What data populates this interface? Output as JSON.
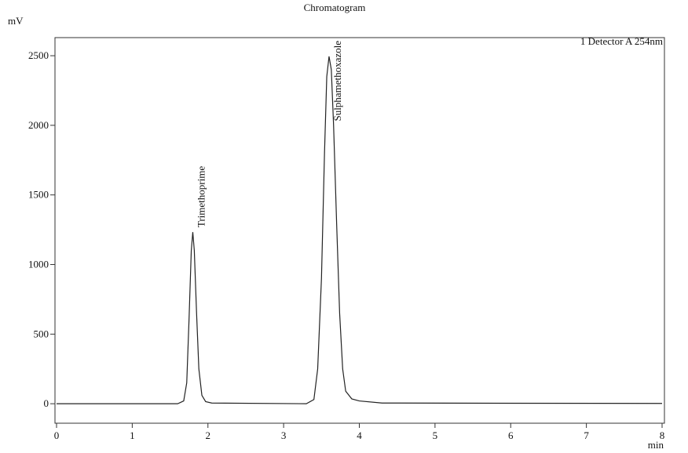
{
  "chart_data": {
    "type": "line",
    "title": "Chromatogram",
    "y_label": "mV",
    "x_label": "min",
    "x": [
      0,
      1.6,
      1.68,
      1.72,
      1.75,
      1.78,
      1.8,
      1.82,
      1.85,
      1.88,
      1.92,
      1.97,
      2.05,
      3.3,
      3.4,
      3.45,
      3.5,
      3.54,
      3.57,
      3.6,
      3.63,
      3.66,
      3.7,
      3.74,
      3.78,
      3.82,
      3.9,
      4.0,
      4.3,
      8.0
    ],
    "series": [
      {
        "name": "1 Detector A 254nm",
        "color": "#222222",
        "values": [
          0,
          0,
          20,
          150,
          600,
          1100,
          1233,
          1100,
          650,
          250,
          60,
          15,
          5,
          0,
          30,
          250,
          900,
          1800,
          2350,
          2495,
          2400,
          2000,
          1300,
          650,
          250,
          90,
          35,
          20,
          5,
          2
        ]
      }
    ],
    "peak_labels": [
      "Trimethoprime",
      "Sulphamethoxazole"
    ],
    "xlim": [
      0,
      8
    ],
    "ylim": [
      -140,
      2630
    ],
    "xticks": [
      0,
      1,
      2,
      3,
      4,
      5,
      6,
      7,
      8
    ],
    "yticks": [
      0,
      500,
      1000,
      1500,
      2000,
      2500
    ]
  }
}
